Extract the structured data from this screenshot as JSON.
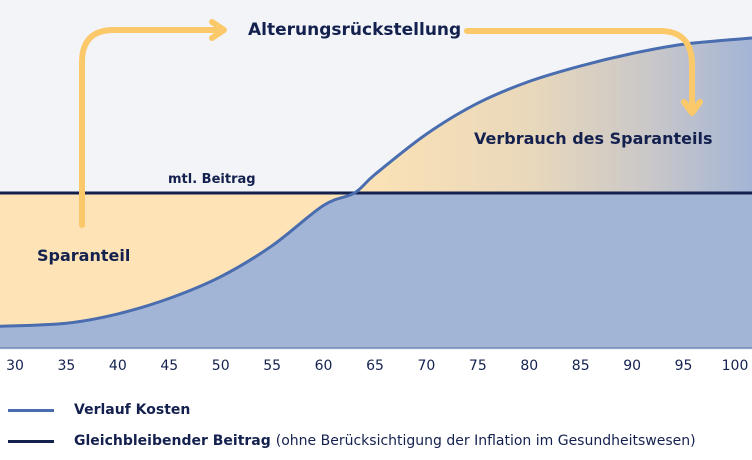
{
  "chart_data": {
    "type": "area",
    "title": "",
    "xlabel": "",
    "ylabel": "",
    "x_ticks": [
      "30",
      "35",
      "40",
      "45",
      "50",
      "55",
      "60",
      "65",
      "70",
      "75",
      "80",
      "85",
      "90",
      "95",
      "100"
    ],
    "xlim": [
      30,
      100
    ],
    "series": [
      {
        "name": "Verlauf Kosten",
        "x": [
          30,
          35,
          40,
          45,
          50,
          55,
          60,
          63,
          65,
          70,
          75,
          80,
          85,
          90,
          95,
          100
        ],
        "values": [
          7,
          8,
          11,
          16,
          23,
          33,
          46,
          50,
          56,
          69,
          79,
          86,
          91,
          95,
          98,
          100
        ]
      },
      {
        "name": "Gleichbleibender Beitrag",
        "x": [
          30,
          100
        ],
        "values": [
          50,
          50
        ]
      }
    ],
    "annotations": {
      "top": "Alterungsrückstellung",
      "right": "Verbrauch des Sparanteils",
      "left": "Sparanteil",
      "line": "mtl. Beitrag"
    },
    "colors": {
      "cost": "#4a6db0",
      "premium": "#14214f",
      "savings": "#fde3b5",
      "cost_area": "#a3b5d6",
      "arrow": "#fcc96a",
      "bg": "#f2f4f8"
    }
  },
  "legend": [
    {
      "label": "Verlauf Kosten",
      "note": ""
    },
    {
      "label": "Gleichbleibender Beitrag",
      "note": "(ohne Berücksichtigung der Inflation im Gesundheitswesen)"
    }
  ]
}
